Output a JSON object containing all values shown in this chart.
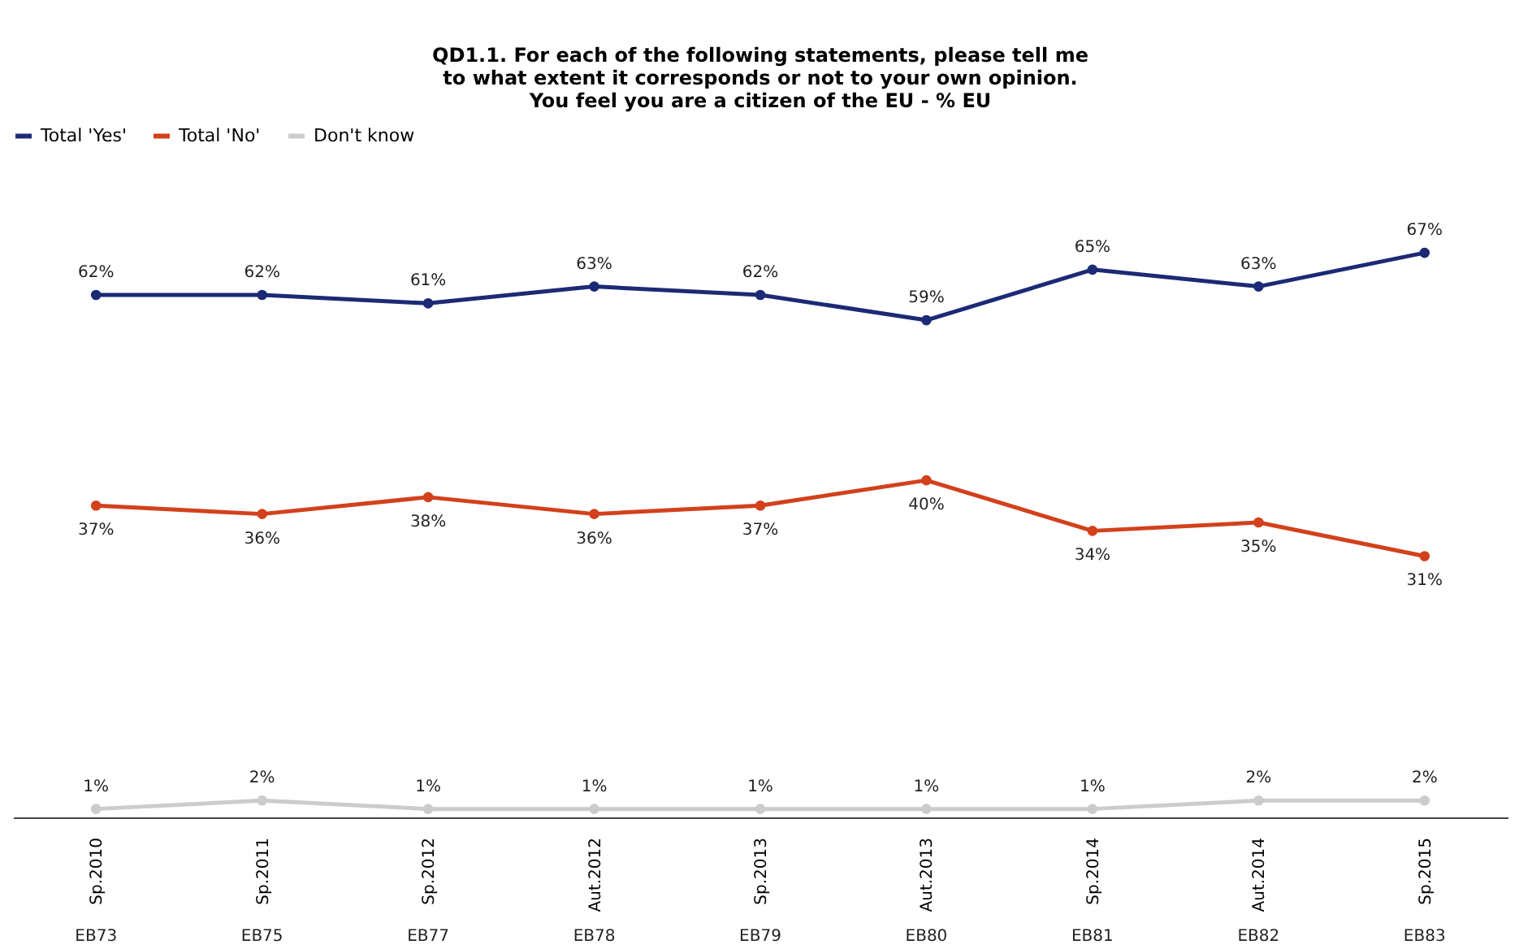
{
  "chart_data": {
    "type": "line",
    "title": "QD1.1. For each of the following  statements, please tell me\nto what extent it corresponds or not to your own opinion.\nYou feel you are a citizen of the EU - % EU",
    "categories": [
      "Sp.2010\nEB73",
      "Sp.2011\nEB75",
      "Sp.2012\nEB77",
      "Aut.2012\nEB78",
      "Sp.2013\nEB79",
      "Aut.2013\nEB80",
      "Sp.2014\nEB81",
      "Aut.2014\nEB82",
      "Sp.2015\nEB83"
    ],
    "series": [
      {
        "name": "Total 'Yes'",
        "color": "#1c2a75",
        "values": [
          62,
          62,
          61,
          63,
          62,
          59,
          65,
          63,
          67
        ],
        "value_labels": [
          "62%",
          "62%",
          "61%",
          "63%",
          "62%",
          "59%",
          "65%",
          "63%",
          "67%"
        ]
      },
      {
        "name": "Total 'No'",
        "color": "#d2411c",
        "values": [
          37,
          36,
          38,
          36,
          37,
          40,
          34,
          35,
          31
        ],
        "value_labels": [
          "37%",
          "36%",
          "38%",
          "36%",
          "37%",
          "40%",
          "34%",
          "35%",
          "31%"
        ]
      },
      {
        "name": "Don't know",
        "color": "#cccccc",
        "values": [
          1,
          2,
          1,
          1,
          1,
          1,
          1,
          2,
          2
        ],
        "value_labels": [
          "1%",
          "2%",
          "1%",
          "1%",
          "1%",
          "1%",
          "1%",
          "2%",
          "2%"
        ]
      }
    ],
    "legend": "top",
    "marker": "circle"
  }
}
